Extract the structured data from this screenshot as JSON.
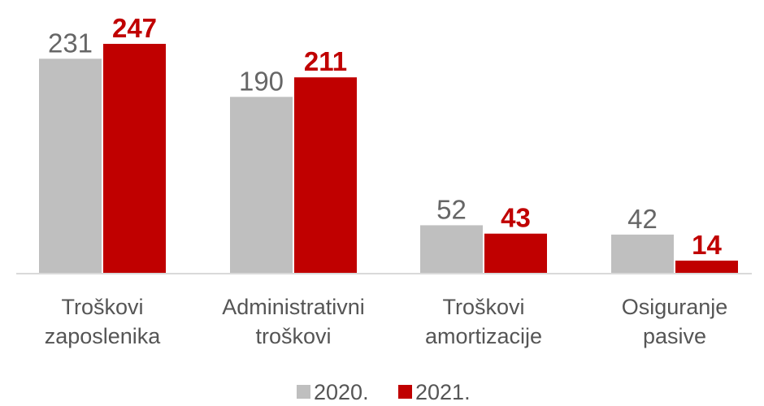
{
  "chart_data": {
    "type": "bar",
    "categories": [
      [
        "Troškovi",
        "zaposlenika"
      ],
      [
        "Administrativni",
        "troškovi"
      ],
      [
        "Troškovi",
        "amortizacije"
      ],
      [
        "Osiguranje",
        "pasive"
      ]
    ],
    "series": [
      {
        "name": "2020.",
        "values": [
          231,
          190,
          52,
          42
        ],
        "color": "#bfbfbf",
        "label_color": "#666666"
      },
      {
        "name": "2021.",
        "values": [
          247,
          211,
          43,
          14
        ],
        "color": "#c00000",
        "label_color": "#c00000"
      }
    ],
    "legend_position": "bottom",
    "grid": false,
    "ylim": [
      0,
      260
    ]
  }
}
